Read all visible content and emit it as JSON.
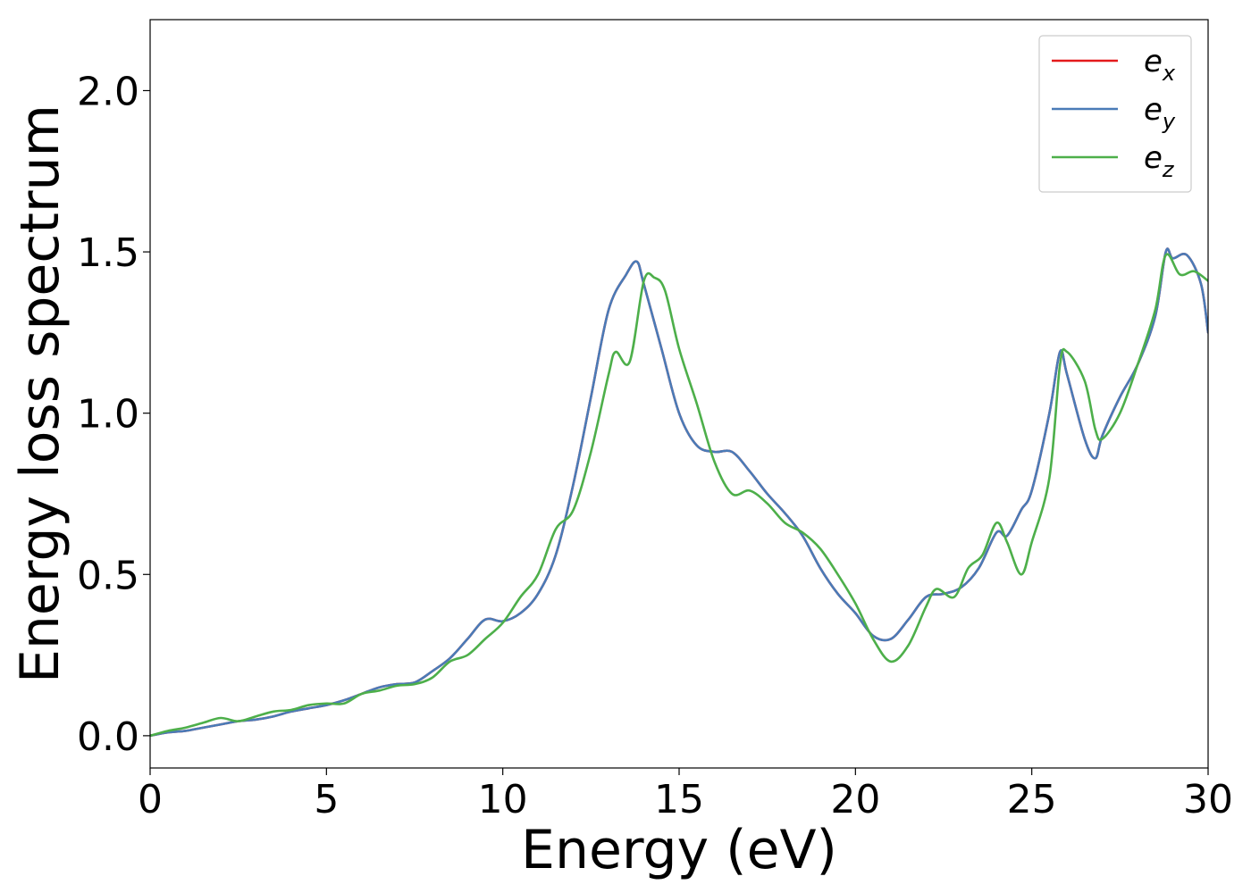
{
  "chart_data": {
    "type": "line",
    "title": "",
    "xlabel": "Energy (eV)",
    "ylabel": "Energy loss spectrum",
    "xlim": [
      0,
      30
    ],
    "ylim": [
      -0.1,
      2.22
    ],
    "xticks": [
      0,
      5,
      10,
      15,
      20,
      25,
      30
    ],
    "xtick_labels": [
      "0",
      "5",
      "10",
      "15",
      "20",
      "25",
      "30"
    ],
    "yticks": [
      0.0,
      0.5,
      1.0,
      1.5,
      2.0
    ],
    "ytick_labels": [
      "0.0",
      "0.5",
      "1.0",
      "1.5",
      "2.0"
    ],
    "grid": false,
    "legend_position": "top-right",
    "series": [
      {
        "name": "e_x",
        "legend_base": "e",
        "legend_sub": "x",
        "color": "#e41a1c",
        "x": [
          0,
          0.5,
          1,
          1.5,
          2,
          2.5,
          3,
          3.5,
          4,
          4.5,
          5,
          5.5,
          6,
          6.5,
          7,
          7.5,
          8,
          8.5,
          9,
          9.5,
          10,
          10.5,
          11,
          11.5,
          12,
          12.5,
          13,
          13.5,
          13.8,
          14,
          14.5,
          15,
          15.5,
          16,
          16.5,
          17,
          17.5,
          18,
          18.5,
          19,
          19.5,
          20,
          20.5,
          21,
          21.5,
          22,
          22.5,
          23,
          23.5,
          24,
          24.3,
          24.7,
          25,
          25.5,
          25.8,
          26,
          26.5,
          26.8,
          27,
          27.5,
          28,
          28.5,
          28.8,
          29,
          29.4,
          29.8,
          30
        ],
        "y": [
          0,
          0.01,
          0.015,
          0.025,
          0.035,
          0.045,
          0.05,
          0.06,
          0.075,
          0.085,
          0.095,
          0.11,
          0.13,
          0.15,
          0.16,
          0.165,
          0.2,
          0.24,
          0.3,
          0.36,
          0.355,
          0.38,
          0.44,
          0.56,
          0.78,
          1.05,
          1.32,
          1.43,
          1.47,
          1.4,
          1.2,
          1.0,
          0.9,
          0.88,
          0.88,
          0.82,
          0.75,
          0.69,
          0.62,
          0.52,
          0.44,
          0.38,
          0.31,
          0.3,
          0.36,
          0.43,
          0.44,
          0.46,
          0.52,
          0.63,
          0.62,
          0.7,
          0.76,
          1.0,
          1.19,
          1.12,
          0.92,
          0.86,
          0.93,
          1.05,
          1.15,
          1.3,
          1.5,
          1.48,
          1.49,
          1.4,
          1.25
        ]
      },
      {
        "name": "e_y",
        "legend_base": "e",
        "legend_sub": "y",
        "color": "#4a7bb7",
        "x": [
          0,
          0.5,
          1,
          1.5,
          2,
          2.5,
          3,
          3.5,
          4,
          4.5,
          5,
          5.5,
          6,
          6.5,
          7,
          7.5,
          8,
          8.5,
          9,
          9.5,
          10,
          10.5,
          11,
          11.5,
          12,
          12.5,
          13,
          13.5,
          13.8,
          14,
          14.5,
          15,
          15.5,
          16,
          16.5,
          17,
          17.5,
          18,
          18.5,
          19,
          19.5,
          20,
          20.5,
          21,
          21.5,
          22,
          22.5,
          23,
          23.5,
          24,
          24.3,
          24.7,
          25,
          25.5,
          25.8,
          26,
          26.5,
          26.8,
          27,
          27.5,
          28,
          28.5,
          28.8,
          29,
          29.4,
          29.8,
          30
        ],
        "y": [
          0,
          0.01,
          0.015,
          0.025,
          0.035,
          0.045,
          0.05,
          0.06,
          0.075,
          0.085,
          0.095,
          0.11,
          0.13,
          0.15,
          0.16,
          0.165,
          0.2,
          0.24,
          0.3,
          0.36,
          0.355,
          0.38,
          0.44,
          0.56,
          0.78,
          1.05,
          1.32,
          1.43,
          1.47,
          1.4,
          1.2,
          1.0,
          0.9,
          0.88,
          0.88,
          0.82,
          0.75,
          0.69,
          0.62,
          0.52,
          0.44,
          0.38,
          0.31,
          0.3,
          0.36,
          0.43,
          0.44,
          0.46,
          0.52,
          0.63,
          0.62,
          0.7,
          0.76,
          1.0,
          1.19,
          1.12,
          0.92,
          0.86,
          0.93,
          1.05,
          1.15,
          1.3,
          1.5,
          1.48,
          1.49,
          1.4,
          1.25
        ]
      },
      {
        "name": "e_z",
        "legend_base": "e",
        "legend_sub": "z",
        "color": "#4daf4a",
        "x": [
          0,
          0.5,
          1,
          1.5,
          2,
          2.5,
          3,
          3.5,
          4,
          4.5,
          5,
          5.5,
          6,
          6.5,
          7,
          7.5,
          8,
          8.5,
          9,
          9.5,
          10,
          10.5,
          11,
          11.5,
          12,
          12.5,
          13,
          13.2,
          13.6,
          14,
          14.3,
          14.6,
          15,
          15.5,
          16,
          16.5,
          17,
          17.5,
          18,
          18.5,
          19,
          19.5,
          20,
          20.5,
          21,
          21.5,
          22,
          22.3,
          22.8,
          23.2,
          23.6,
          24,
          24.3,
          24.7,
          25,
          25.5,
          25.8,
          26,
          26.5,
          26.8,
          27,
          27.5,
          28,
          28.5,
          28.8,
          29.2,
          29.6,
          30
        ],
        "y": [
          0,
          0.015,
          0.025,
          0.04,
          0.055,
          0.045,
          0.06,
          0.075,
          0.08,
          0.095,
          0.1,
          0.1,
          0.13,
          0.14,
          0.155,
          0.16,
          0.18,
          0.23,
          0.25,
          0.3,
          0.35,
          0.43,
          0.5,
          0.64,
          0.7,
          0.88,
          1.12,
          1.19,
          1.16,
          1.41,
          1.42,
          1.38,
          1.2,
          1.03,
          0.85,
          0.75,
          0.76,
          0.72,
          0.66,
          0.63,
          0.58,
          0.5,
          0.41,
          0.3,
          0.23,
          0.28,
          0.4,
          0.455,
          0.43,
          0.52,
          0.56,
          0.66,
          0.6,
          0.5,
          0.6,
          0.8,
          1.15,
          1.19,
          1.1,
          0.95,
          0.92,
          1.0,
          1.15,
          1.32,
          1.49,
          1.43,
          1.44,
          1.41
        ]
      }
    ]
  }
}
